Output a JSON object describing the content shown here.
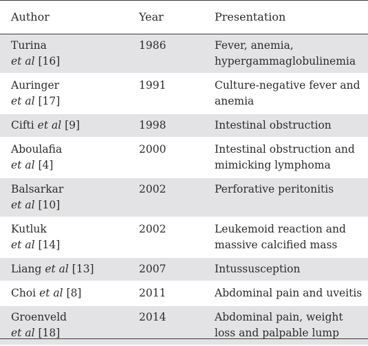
{
  "table": {
    "headers": {
      "author": "Author",
      "year": "Year",
      "presentation": "Presentation"
    },
    "rows": [
      {
        "author": [
          {
            "t": "Turina",
            "i": false
          },
          {
            "t": "et al",
            "i": true
          },
          {
            "t": " [16]",
            "i": false
          }
        ],
        "author_lines": [
          [
            "Turina"
          ],
          [
            "et al",
            " [16]"
          ]
        ],
        "year": "1986",
        "presentation": [
          "Fever, anemia,",
          "hypergammaglobulinemia"
        ]
      },
      {
        "author_lines": [
          [
            "Auringer"
          ],
          [
            "et al",
            " [17]"
          ]
        ],
        "year": "1991",
        "presentation": [
          "Culture-negative fever and",
          "anemia"
        ]
      },
      {
        "author_lines": [
          [
            "Cifti ",
            "et al",
            " [9]"
          ]
        ],
        "year": "1998",
        "presentation": [
          "Intestinal obstruction"
        ]
      },
      {
        "author_lines": [
          [
            "Aboulafia"
          ],
          [
            "et al",
            " [4]"
          ]
        ],
        "year": "2000",
        "presentation": [
          "Intestinal obstruction and",
          "mimicking lymphoma"
        ]
      },
      {
        "author_lines": [
          [
            "Balsarkar"
          ],
          [
            "et al",
            " [10]"
          ]
        ],
        "year": "2002",
        "presentation": [
          "Perforative peritonitis"
        ]
      },
      {
        "author_lines": [
          [
            "Kutluk"
          ],
          [
            "et al",
            " [14]"
          ]
        ],
        "year": "2002",
        "presentation": [
          "Leukemoid reaction and",
          "massive calcified mass"
        ]
      },
      {
        "author_lines": [
          [
            "Liang ",
            "et al",
            " [13]"
          ]
        ],
        "year": "2007",
        "presentation": [
          "Intussusception"
        ]
      },
      {
        "author_lines": [
          [
            "Choi ",
            "et al",
            " [8]"
          ]
        ],
        "year": "2011",
        "presentation": [
          "Abdominal pain and uveitis"
        ]
      },
      {
        "author_lines": [
          [
            "Groenveld"
          ],
          [
            "et al",
            " [18]"
          ]
        ],
        "year": "2014",
        "presentation": [
          "Abdominal pain, weight",
          "loss and palpable lump"
        ]
      }
    ]
  }
}
